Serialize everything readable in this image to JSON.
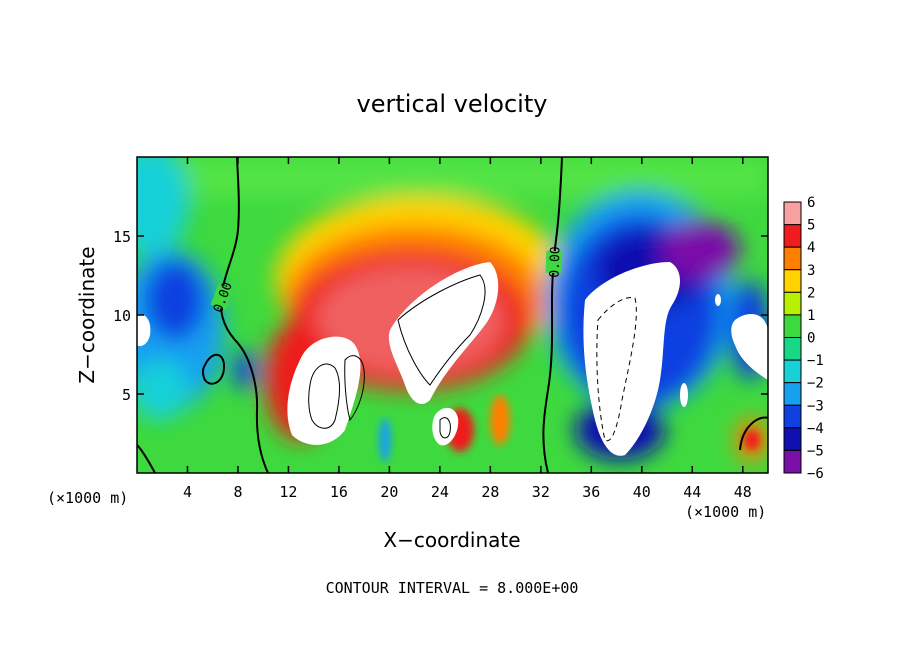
{
  "chart_data": {
    "type": "heatmap",
    "title": "vertical velocity",
    "xlabel": "X−coordinate",
    "ylabel": "Z−coordinate",
    "x_unit_left": "(×1000 m)",
    "x_unit_right": "(×1000 m)",
    "footer": "CONTOUR INTERVAL = 8.000E+00",
    "xlim": [
      0,
      50
    ],
    "ylim": [
      0,
      20
    ],
    "x_ticks": [
      4,
      8,
      12,
      16,
      20,
      24,
      28,
      32,
      36,
      40,
      44,
      48
    ],
    "y_ticks": [
      5,
      10,
      15
    ],
    "x_tick_labels": [
      "4",
      "8",
      "12",
      "16",
      "20",
      "24",
      "28",
      "32",
      "36",
      "40",
      "44",
      "48"
    ],
    "y_tick_labels": [
      "5",
      "10",
      "15"
    ],
    "contour_labels": [
      {
        "text": "0.00",
        "x": 7.5,
        "z": 11.3
      },
      {
        "text": "0.00",
        "x": 33.2,
        "z": 13.2
      }
    ],
    "colorbar": {
      "levels": [
        6,
        5,
        4,
        3,
        2,
        1,
        0,
        -1,
        -2,
        -3,
        -4,
        -5,
        -6
      ],
      "labels": [
        "6",
        "5",
        "4",
        "3",
        "2",
        "1",
        "0",
        "−1",
        "−2",
        "−3",
        "−4",
        "−5",
        "−6"
      ],
      "colors": [
        "#f9a0a0",
        "#f06060",
        "#ee1c1c",
        "#ff7f00",
        "#ffd200",
        "#b8f000",
        "#3ed93e",
        "#18d888",
        "#18d0d8",
        "#18a0f0",
        "#1040e0",
        "#1010b0",
        "#7a10a8"
      ]
    },
    "features": [
      {
        "name": "updraft core",
        "sign": "positive",
        "x_range": [
          10,
          32
        ],
        "z_range": [
          0,
          16
        ],
        "peak": "> 6"
      },
      {
        "name": "downdraft region right",
        "sign": "negative",
        "x_range": [
          33,
          50
        ],
        "z_range": [
          0,
          17
        ],
        "peak": "< -6"
      },
      {
        "name": "downdraft region left",
        "sign": "negative",
        "x_range": [
          0,
          9
        ],
        "z_range": [
          0,
          14
        ],
        "peak": "< -6"
      }
    ]
  }
}
